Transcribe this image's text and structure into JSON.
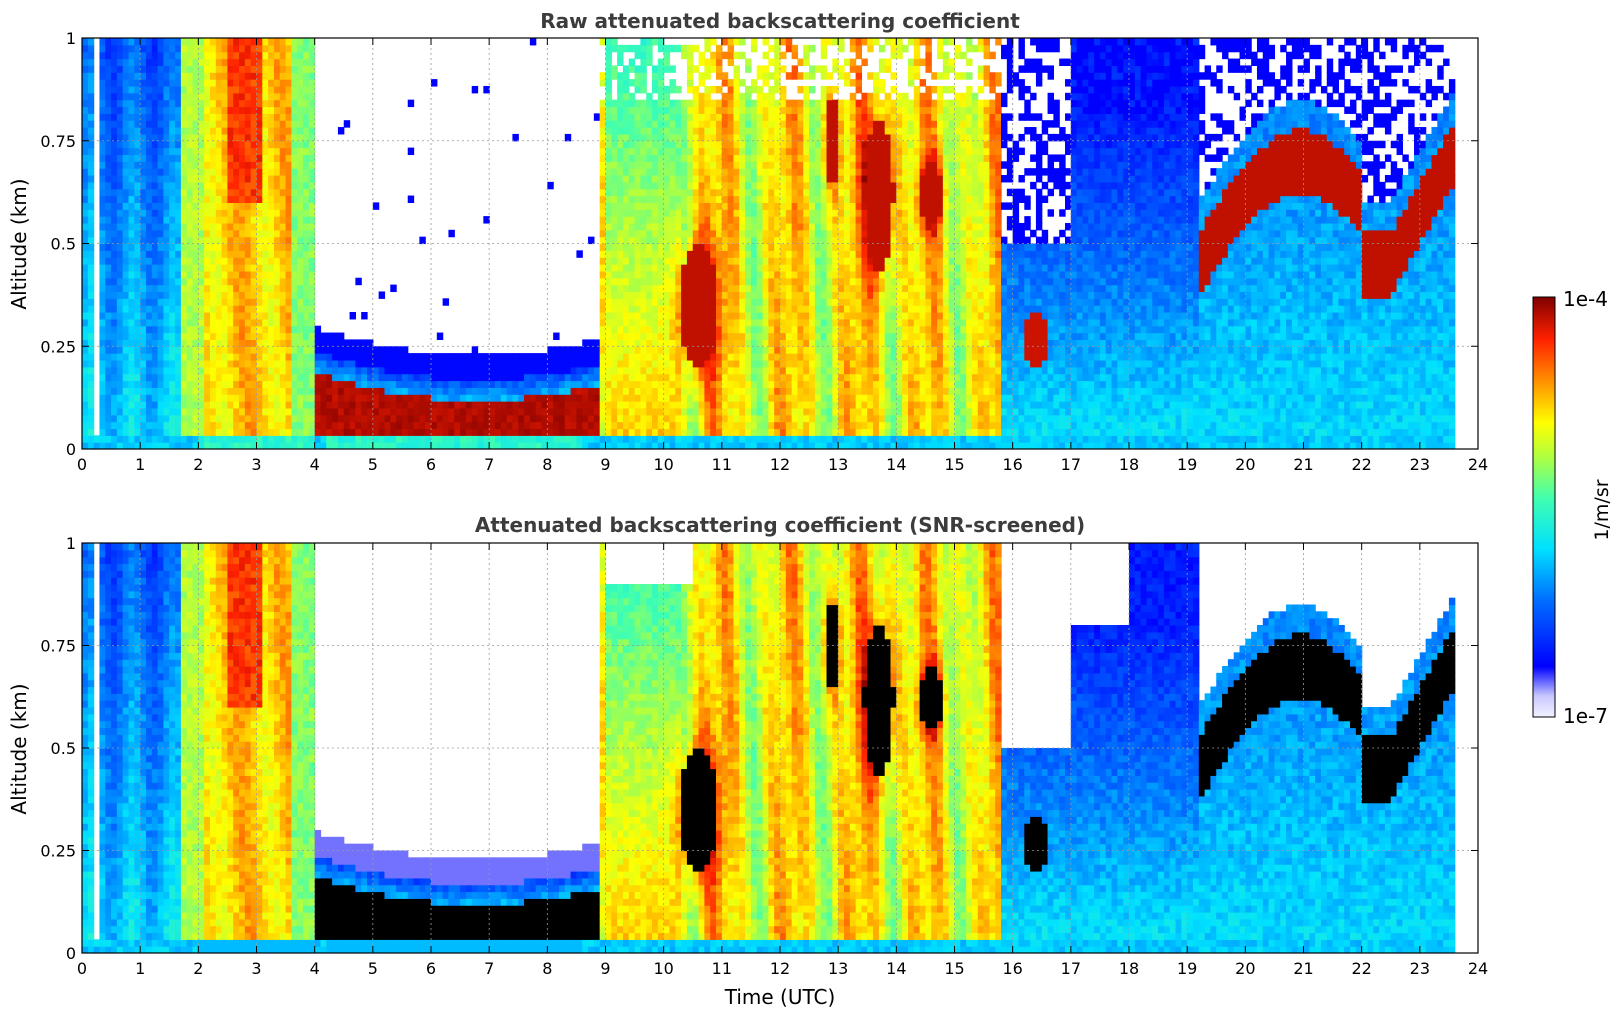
{
  "chart_data": [
    {
      "type": "heatmap",
      "title": "Raw attenuated backscattering coefficient",
      "xlabel": "",
      "ylabel": "Altitude (km)",
      "x_ticks": [
        "0",
        "1",
        "2",
        "3",
        "4",
        "5",
        "6",
        "7",
        "8",
        "9",
        "10",
        "11",
        "12",
        "13",
        "14",
        "15",
        "16",
        "17",
        "18",
        "19",
        "20",
        "21",
        "22",
        "23",
        "24"
      ],
      "y_ticks": [
        "0",
        "0.25",
        "0.5",
        "0.75",
        "1"
      ],
      "xlim": [
        0,
        24
      ],
      "ylim": [
        0,
        1
      ],
      "grid": true,
      "x_units": "hours UTC",
      "y_units": "km",
      "description_bands": [
        {
          "t0": 0,
          "t1": 1.75,
          "desc": "blue/cyan aerosol layer"
        },
        {
          "t0": 1.75,
          "t1": 4.0,
          "desc": "orange/yellow cloud column"
        },
        {
          "t0": 4.0,
          "t1": 8.9,
          "desc": "clear above, dark red cloud base near 0.05-0.15 km"
        },
        {
          "t0": 8.9,
          "t1": 15.8,
          "desc": "yellow/orange convective columns"
        },
        {
          "t0": 15.8,
          "t1": 19.2,
          "desc": "cyan/blue boundary layer"
        },
        {
          "t0": 19.2,
          "t1": 23.65,
          "desc": "dark red cloud layer near 0.4-0.6 km"
        }
      ]
    },
    {
      "type": "heatmap",
      "title": "Attenuated backscattering coefficient (SNR-screened)",
      "xlabel": "Time (UTC)",
      "ylabel": "Altitude (km)",
      "x_ticks": [
        "0",
        "1",
        "2",
        "3",
        "4",
        "5",
        "6",
        "7",
        "8",
        "9",
        "10",
        "11",
        "12",
        "13",
        "14",
        "15",
        "16",
        "17",
        "18",
        "19",
        "20",
        "21",
        "22",
        "23",
        "24"
      ],
      "y_ticks": [
        "0",
        "0.25",
        "0.5",
        "0.75",
        "1"
      ],
      "xlim": [
        0,
        24
      ],
      "ylim": [
        0,
        1
      ],
      "grid": true,
      "x_units": "hours UTC",
      "y_units": "km",
      "note": "saturated values rendered black"
    }
  ],
  "colorbar": {
    "max_label": "1e-4",
    "min_label": "1e-7",
    "unit_label": "1/m/sr"
  }
}
